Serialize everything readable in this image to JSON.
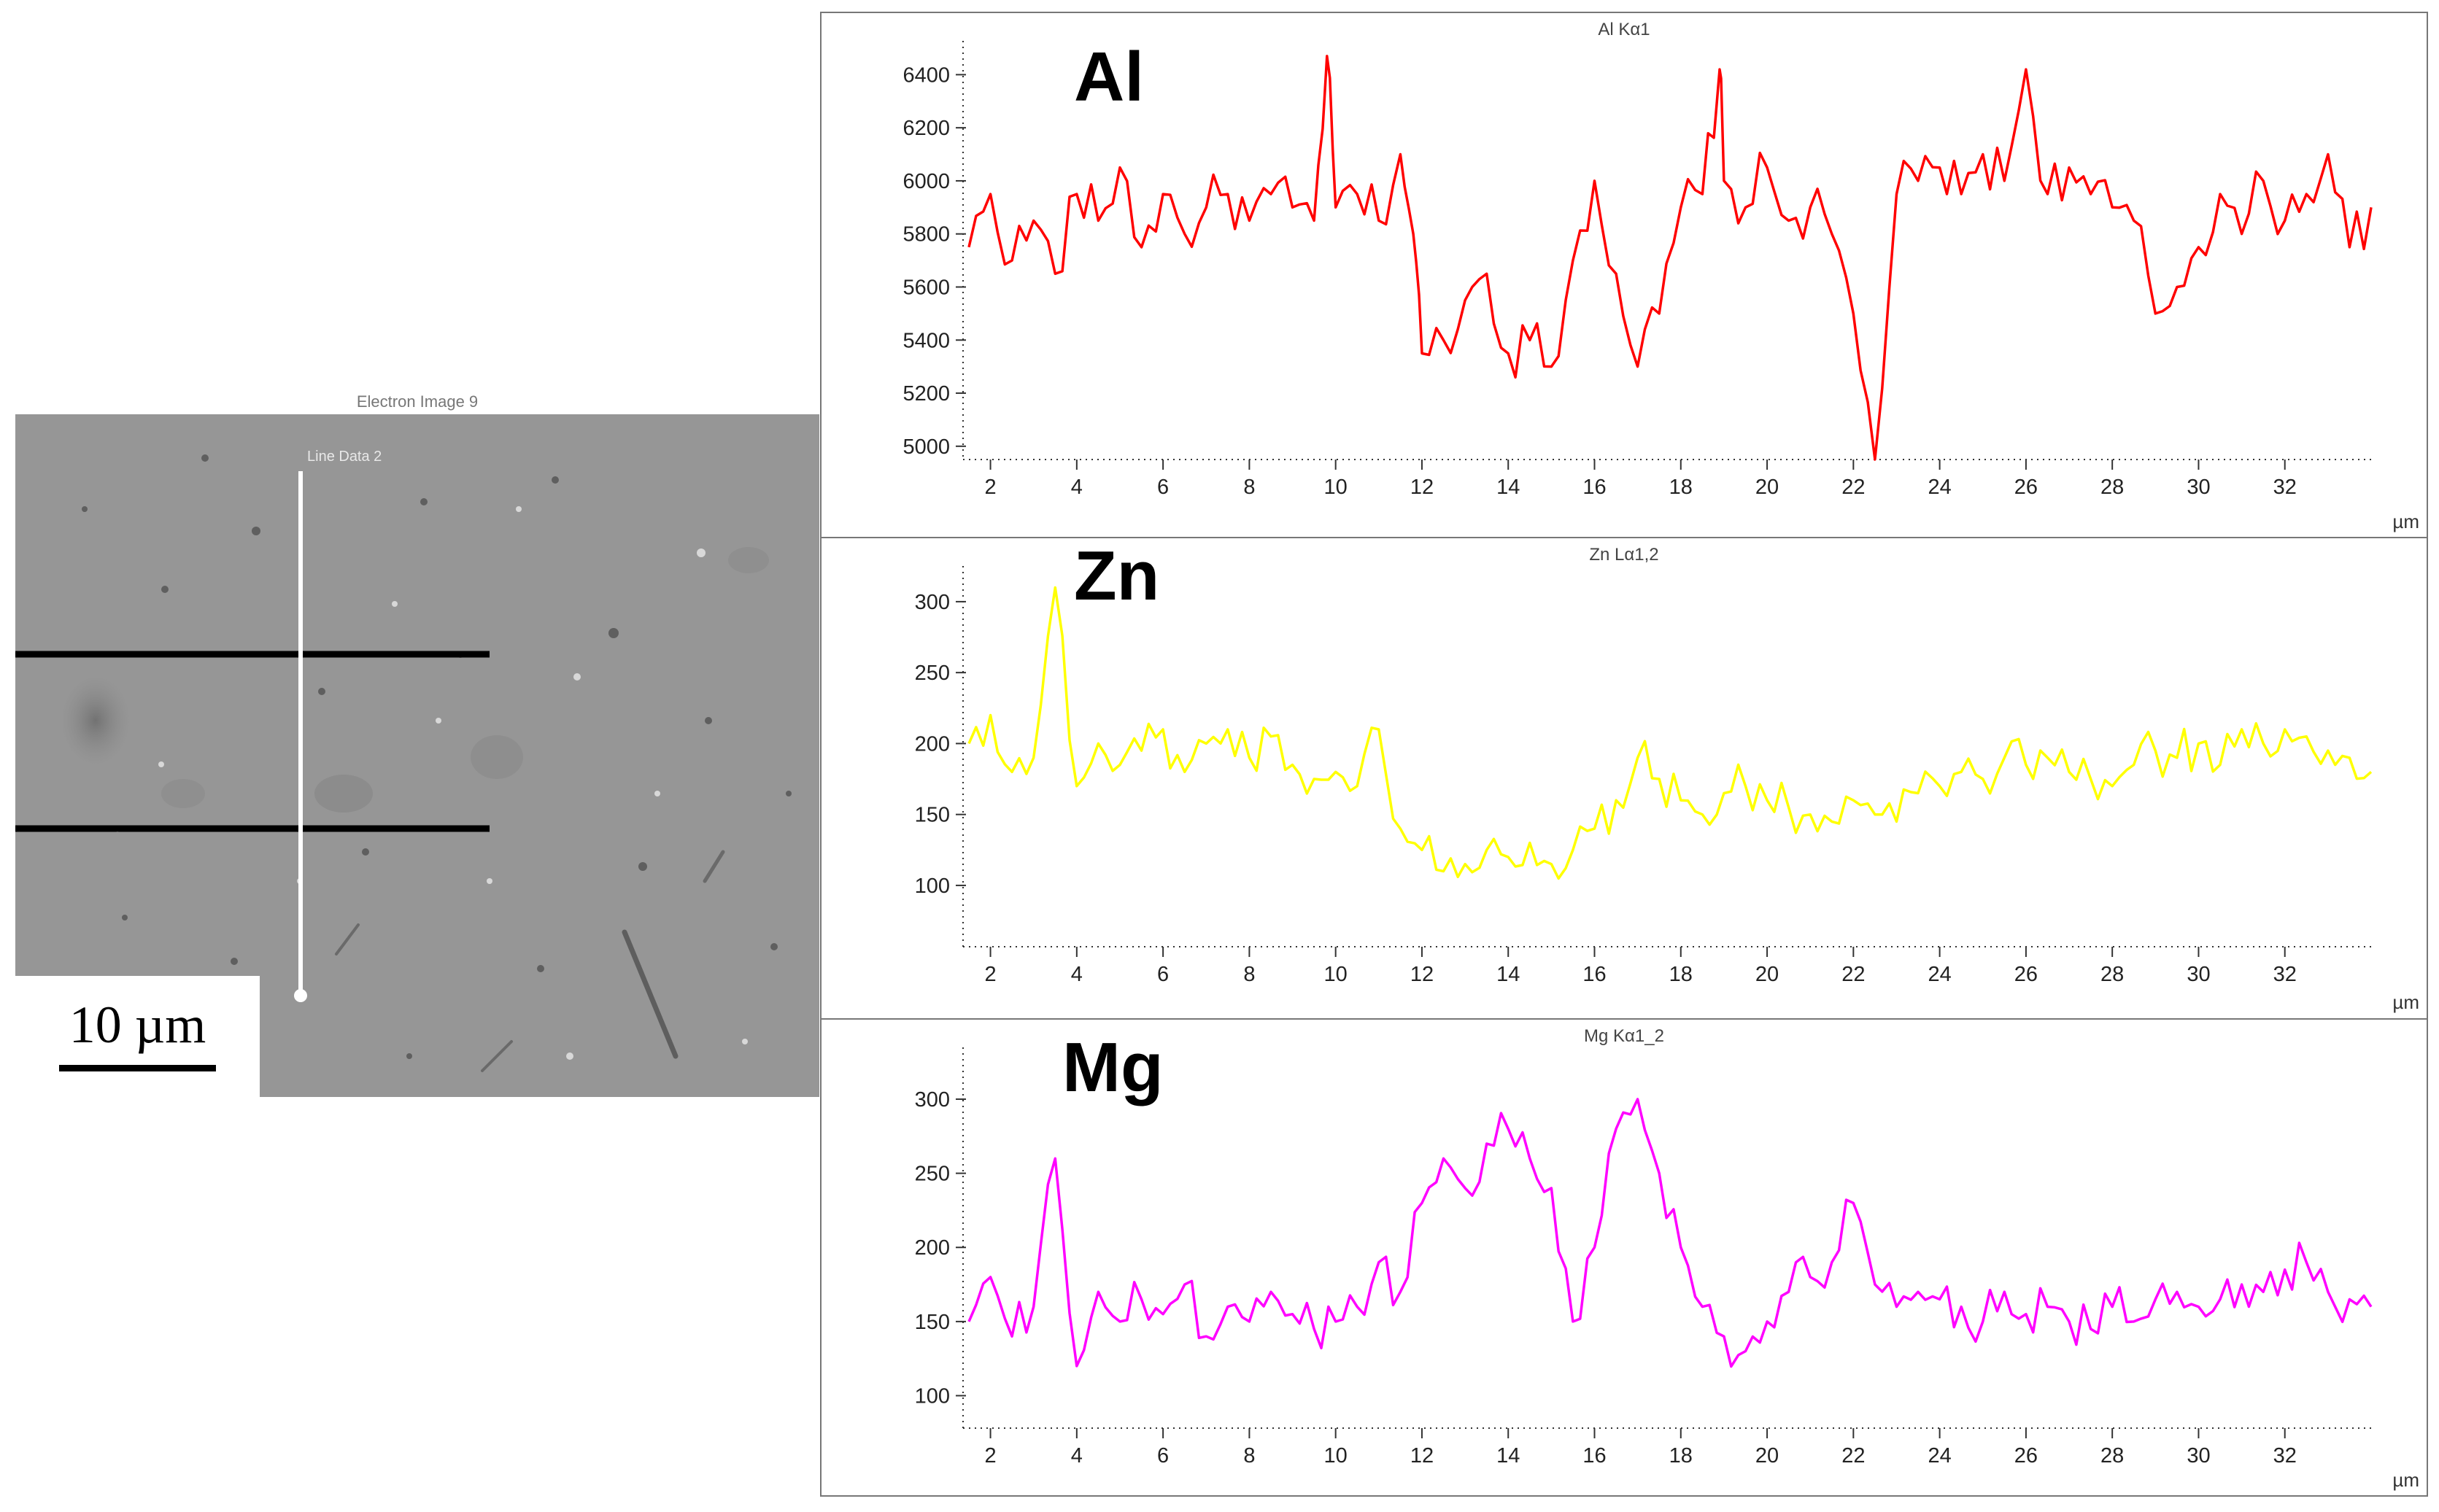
{
  "sem_image": {
    "title": "Electron Image 9",
    "line_label": "Line Data 2",
    "scale_label": "10 µm"
  },
  "chart_data": [
    {
      "type": "line",
      "title": "Al Kα1",
      "element_label": "Al",
      "xlabel": "µm",
      "color": "#ff0000",
      "xlim": [
        1.5,
        34
      ],
      "ylim": [
        4950,
        6500
      ],
      "xticks": [
        2,
        4,
        6,
        8,
        10,
        12,
        14,
        16,
        18,
        20,
        22,
        24,
        26,
        28,
        30,
        32
      ],
      "yticks": [
        5000,
        5200,
        5400,
        5600,
        5800,
        6000,
        6200,
        6400
      ],
      "series": [
        {
          "x": [
            1.5,
            2.0,
            2.5,
            3.0,
            3.5,
            4.0,
            4.5,
            5.0,
            5.5,
            6.0,
            6.5,
            7.0,
            7.5,
            8.0,
            8.5,
            9.0,
            9.5,
            9.8,
            10.0,
            10.5,
            11.0,
            11.5,
            11.8,
            12.0,
            12.5,
            13.0,
            13.5,
            14.0,
            14.5,
            15.0,
            15.5,
            16.0,
            16.5,
            17.0,
            17.5,
            18.0,
            18.5,
            18.9,
            19.0,
            19.5,
            20.0,
            20.5,
            21.0,
            21.5,
            22.0,
            22.5,
            23.0,
            23.5,
            24.0,
            24.5,
            25.0,
            25.5,
            26.0,
            26.5,
            27.0,
            27.5,
            28.0,
            28.5,
            29.0,
            29.5,
            30.0,
            30.5,
            31.0,
            31.5,
            32.0,
            32.5,
            33.0,
            33.5,
            34.0
          ],
          "values": [
            5750,
            5950,
            5700,
            5850,
            5650,
            5950,
            5850,
            6050,
            5750,
            5950,
            5800,
            5900,
            5950,
            5850,
            5950,
            5900,
            5850,
            6470,
            5900,
            5950,
            5850,
            6100,
            5800,
            5350,
            5400,
            5550,
            5650,
            5350,
            5400,
            5300,
            5700,
            6000,
            5650,
            5300,
            5500,
            5900,
            5950,
            6420,
            6000,
            5900,
            6050,
            5850,
            5900,
            5800,
            5500,
            4950,
            5950,
            6000,
            6050,
            5950,
            6100,
            6000,
            6420,
            5950,
            6050,
            5950,
            5900,
            5850,
            5500,
            5600,
            5750,
            5950,
            5800,
            6000,
            5850,
            5950,
            6100,
            5750,
            5900
          ]
        }
      ]
    },
    {
      "type": "line",
      "title": "Zn Lα1,2",
      "element_label": "Zn",
      "xlabel": "µm",
      "color": "#ffff00",
      "xlim": [
        1.5,
        34
      ],
      "ylim": [
        65,
        320
      ],
      "xticks": [
        2,
        4,
        6,
        8,
        10,
        12,
        14,
        16,
        18,
        20,
        22,
        24,
        26,
        28,
        30,
        32
      ],
      "yticks": [
        100,
        150,
        200,
        250,
        300
      ],
      "series": [
        {
          "x": [
            1.5,
            2.0,
            2.5,
            3.0,
            3.5,
            4.0,
            4.5,
            5.0,
            5.5,
            6.0,
            6.5,
            7.0,
            7.5,
            8.0,
            8.5,
            9.0,
            9.5,
            10.0,
            10.5,
            11.0,
            11.5,
            12.0,
            12.5,
            13.0,
            13.5,
            14.0,
            14.5,
            15.0,
            15.5,
            16.0,
            16.5,
            17.0,
            17.5,
            18.0,
            18.5,
            19.0,
            19.5,
            20.0,
            20.5,
            21.0,
            21.5,
            22.0,
            22.5,
            23.0,
            23.5,
            24.0,
            24.5,
            25.0,
            25.5,
            26.0,
            26.5,
            27.0,
            27.5,
            28.0,
            28.5,
            29.0,
            29.5,
            30.0,
            30.5,
            31.0,
            31.5,
            32.0,
            32.5,
            33.0,
            33.5,
            34.0
          ],
          "values": [
            200,
            220,
            180,
            190,
            310,
            170,
            200,
            185,
            195,
            210,
            180,
            200,
            210,
            190,
            205,
            185,
            175,
            180,
            170,
            210,
            140,
            125,
            110,
            115,
            125,
            120,
            130,
            115,
            125,
            140,
            160,
            190,
            175,
            160,
            150,
            165,
            170,
            160,
            155,
            150,
            145,
            160,
            150,
            145,
            165,
            170,
            180,
            175,
            190,
            185,
            190,
            180,
            175,
            170,
            185,
            195,
            190,
            200,
            185,
            210,
            200,
            210,
            205,
            195,
            190,
            180
          ]
        }
      ]
    },
    {
      "type": "line",
      "title": "Mg Kα1_2",
      "element_label": "Mg",
      "xlabel": "µm",
      "color": "#ff00ff",
      "xlim": [
        1.5,
        34
      ],
      "ylim": [
        85,
        330
      ],
      "xticks": [
        2,
        4,
        6,
        8,
        10,
        12,
        14,
        16,
        18,
        20,
        22,
        24,
        26,
        28,
        30,
        32
      ],
      "yticks": [
        100,
        150,
        200,
        250,
        300
      ],
      "series": [
        {
          "x": [
            1.5,
            2.0,
            2.5,
            3.0,
            3.5,
            4.0,
            4.5,
            5.0,
            5.5,
            6.0,
            6.5,
            7.0,
            7.5,
            8.0,
            8.5,
            9.0,
            9.5,
            10.0,
            10.5,
            11.0,
            11.5,
            12.0,
            12.5,
            13.0,
            13.5,
            14.0,
            14.5,
            15.0,
            15.5,
            16.0,
            16.5,
            17.0,
            17.5,
            18.0,
            18.5,
            19.0,
            19.5,
            20.0,
            20.5,
            21.0,
            21.5,
            22.0,
            22.5,
            23.0,
            23.5,
            24.0,
            24.5,
            25.0,
            25.5,
            26.0,
            26.5,
            27.0,
            27.5,
            28.0,
            28.5,
            29.0,
            29.5,
            30.0,
            30.5,
            31.0,
            31.5,
            32.0,
            32.5,
            33.0,
            33.5,
            34.0
          ],
          "values": [
            150,
            180,
            140,
            160,
            260,
            120,
            170,
            150,
            165,
            155,
            175,
            140,
            160,
            150,
            170,
            155,
            145,
            150,
            160,
            190,
            170,
            230,
            260,
            240,
            270,
            280,
            260,
            240,
            150,
            200,
            280,
            300,
            250,
            200,
            160,
            140,
            130,
            150,
            170,
            180,
            190,
            230,
            175,
            160,
            170,
            165,
            160,
            150,
            170,
            155,
            160,
            150,
            145,
            160,
            150,
            165,
            170,
            160,
            165,
            175,
            170,
            185,
            190,
            170,
            165,
            160
          ]
        }
      ]
    }
  ]
}
